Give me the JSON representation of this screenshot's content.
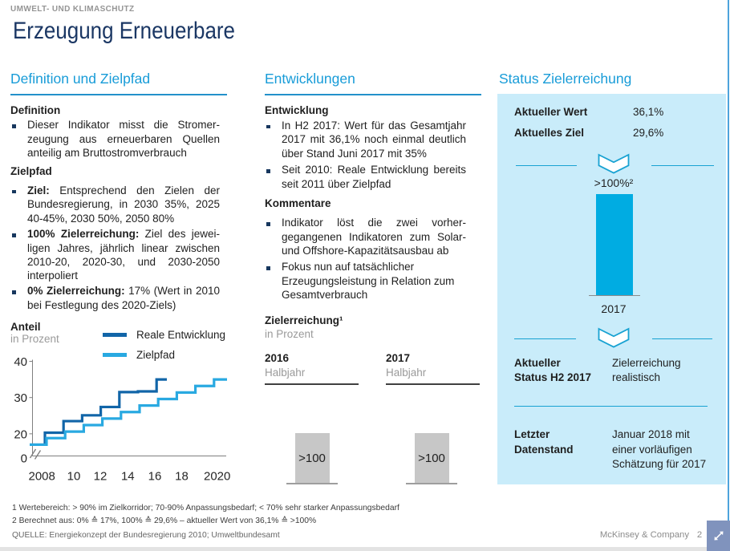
{
  "page": {
    "kicker": "UMWELT- UND KLIMASCHUTZ",
    "title": "Erzeugung Erneuerbare",
    "brand": "McKinsey & Company",
    "page_number": "2"
  },
  "colors": {
    "accent_cyan": "#189cd8",
    "panel_blue": "#c9ecfa",
    "bar_cyan": "#00ace2",
    "line_dark_blue": "#1165a8",
    "line_light_blue": "#29a9e1",
    "gray_bar": "#c7c7c7",
    "navy_text": "#1b3764"
  },
  "col1": {
    "heading": "Definition und Zielpfad",
    "def_heading": "Definition",
    "def_bullet": "Dieser Indikator misst die Stromer-zeugung aus erneuerbaren Quellen anteilig am Bruttostromverbrauch",
    "ziel_heading": "Zielpfad",
    "b1_lead": "Ziel:",
    "b1_text": " Entsprechend den Zielen der Bundesregierung, in 2030 35%, 2025 40‑45%, 2030 50%, 2050 80%",
    "b2_lead": "100% Zielerreichung:",
    "b2_text": " Ziel des jewei-ligen Jahres, jährlich linear zwischen 2010‑20, 2020‑30, und 2030‑2050 interpoliert",
    "b3_lead": "0% Zielerreichung:",
    "b3_text": " 17% (Wert in 2010 bei Festlegung des 2020‑Ziels)"
  },
  "col2": {
    "heading": "Entwicklungen",
    "sub1": "Entwicklung",
    "bullets1": [
      "In H2 2017: Wert für das Gesamtjahr 2017 mit 36,1% noch einmal deutlich über Stand Juni 2017 mit 35%",
      "Seit 2010: Reale Entwicklung bereits seit 2011 über Zielpfad"
    ],
    "sub2": "Kommentare",
    "bullets2": [
      "Indikator löst die zwei vorher-gegangenen Indikatoren zum Solar- und Offshore-Kapazitätsausbau ab",
      "Fokus nun auf tatsächlicher Erzeugungsleistung in Relation zum Gesamtverbrauch"
    ]
  },
  "col3": {
    "heading": "Status Zielerreichung",
    "wert_label": "Aktueller Wert",
    "wert_value": "36,1%",
    "ziel_label": "Aktuelles Ziel",
    "ziel_value": "29,6%",
    "status_label": "Aktueller\nStatus H2 2017",
    "status_value": "Zielerreichung\nrealistisch",
    "stand_label": "Letzter\nDatenstand",
    "stand_value": "Januar 2018 mit\neiner vorläufigen\nSchätzung für 2017"
  },
  "footnotes": [
    "1 Wertebereich: > 90% im Zielkorridor; 70-90% Anpassungsbedarf; < 70% sehr starker Anpassungsbedarf",
    "2 Berechnet aus: 0% ≙ 17%, 100% ≙ 29,6% – aktueller Wert von 36,1% ≙ >100%"
  ],
  "source_line": "QUELLE:  Energiekonzept der Bundesregierung 2010; Umweltbundesamt",
  "chart_data": [
    {
      "type": "line",
      "title": "Anteil",
      "unit": "in Prozent",
      "step": true,
      "xlabel": "",
      "ylabel": "Anteil in Prozent",
      "ylim": [
        0,
        40
      ],
      "yticklabels": [
        "40",
        "30",
        "20",
        "0"
      ],
      "ytickvalues": [
        40,
        30,
        20,
        0
      ],
      "xticklabels": [
        "2008",
        "10",
        "12",
        "14",
        "16",
        "18",
        "2020"
      ],
      "axis_break": true,
      "legend_position": "top-right",
      "series": [
        {
          "name": "Reale Entwicklung",
          "color": "#1165a8",
          "years": [
            2010,
            2011,
            2012,
            2013,
            2014,
            2015,
            2016,
            2017
          ],
          "values": [
            17.0,
            20.3,
            23.5,
            25.1,
            27.4,
            31.5,
            31.7,
            35.0
          ]
        },
        {
          "name": "Zielpfad",
          "color": "#29a9e1",
          "years": [
            2010,
            2011,
            2012,
            2013,
            2014,
            2015,
            2016,
            2017,
            2018,
            2019,
            2020
          ],
          "values": [
            17.0,
            18.8,
            20.6,
            22.4,
            24.2,
            26.0,
            27.8,
            29.6,
            31.4,
            33.2,
            35.0
          ]
        }
      ]
    },
    {
      "type": "bar",
      "title": "Zielerreichung¹",
      "unit": "in Prozent",
      "categories": [
        "2016",
        "2017"
      ],
      "category_sublabel": "Halbjahr",
      "values": [
        ">100",
        ">100"
      ],
      "bar_color": "#c7c7c7"
    },
    {
      "type": "bar",
      "title": "Status Zielerreichung",
      "categories": [
        "2017"
      ],
      "values": [
        ">100%²"
      ],
      "bar_color": "#00ace2"
    }
  ]
}
